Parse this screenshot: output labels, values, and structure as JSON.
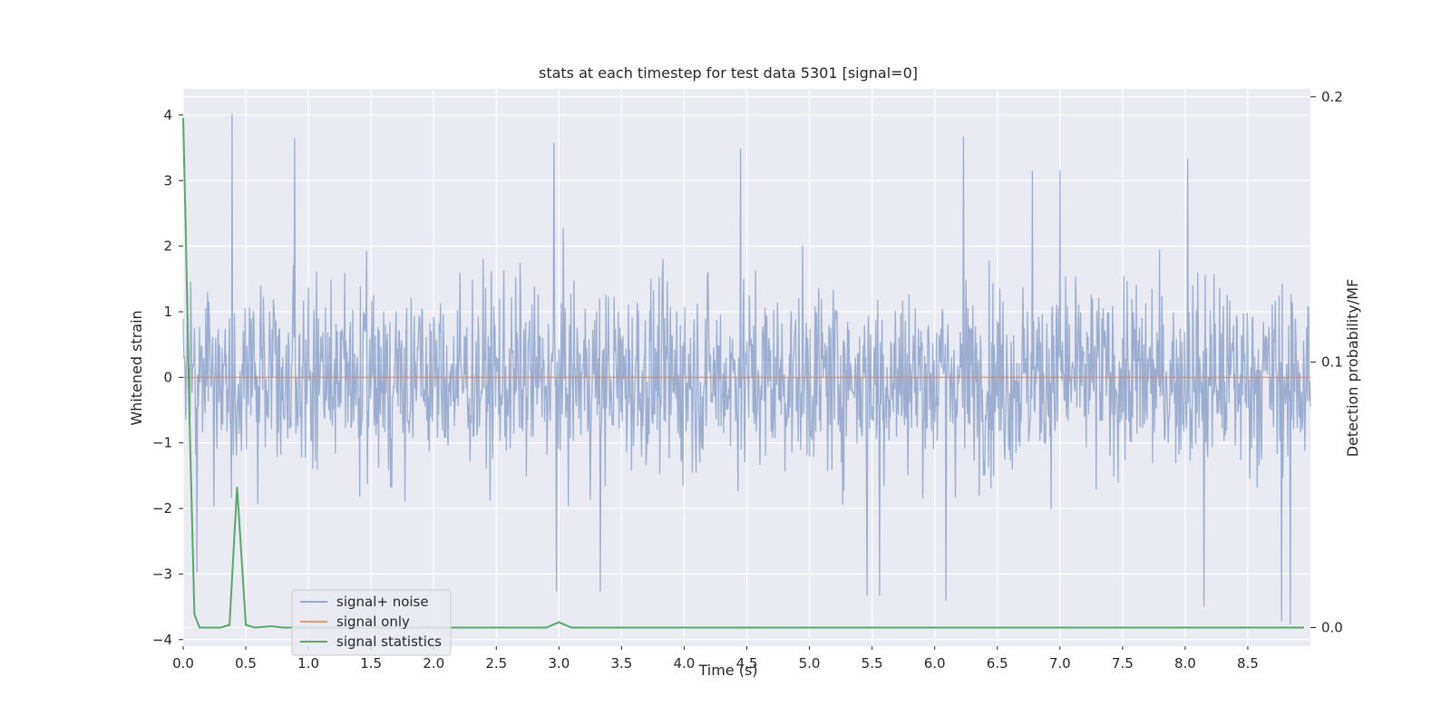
{
  "chart_data": {
    "type": "line",
    "title": "stats at each timestep for test data 5301 [signal=0]",
    "xlabel": "Time (s)",
    "ylabel": "Whitened strain",
    "y2label": "Detection probability/MF",
    "xlim": [
      0.0,
      9.0
    ],
    "ylim": [
      -4.1,
      4.4
    ],
    "y2lim": [
      -0.007,
      0.203
    ],
    "xticks": [
      0.0,
      0.5,
      1.0,
      1.5,
      2.0,
      2.5,
      3.0,
      3.5,
      4.0,
      4.5,
      5.0,
      5.5,
      6.0,
      6.5,
      7.0,
      7.5,
      8.0,
      8.5
    ],
    "xtick_labels": [
      "0.0",
      "0.5",
      "1.0",
      "1.5",
      "2.0",
      "2.5",
      "3.0",
      "3.5",
      "4.0",
      "4.5",
      "5.0",
      "5.5",
      "6.0",
      "6.5",
      "7.0",
      "7.5",
      "8.0",
      "8.5"
    ],
    "yticks": [
      -4,
      -3,
      -2,
      -1,
      0,
      1,
      2,
      3,
      4
    ],
    "ytick_labels": [
      "−4",
      "−3",
      "−2",
      "−1",
      "0",
      "1",
      "2",
      "3",
      "4"
    ],
    "y2ticks": [
      0.0,
      0.1,
      0.2
    ],
    "y2tick_labels": [
      "0.0",
      "0.1",
      "0.2"
    ],
    "grid": true,
    "legend": "lower-left",
    "colors": {
      "background": "#eaeaf2",
      "grid": "#ffffff",
      "noise": "#4c72b0",
      "signal": "#dd8452",
      "stats": "#55a868"
    },
    "series": [
      {
        "name": "signal+ noise",
        "axis": "left",
        "noise_envelope": {
          "t_start": 0.0,
          "t_end": 9.0,
          "typical_range": [
            -2.0,
            2.0
          ],
          "peaks": [
            [
              0.39,
              4.02
            ],
            [
              0.89,
              3.65
            ],
            [
              2.96,
              3.58
            ],
            [
              6.23,
              3.67
            ],
            [
              8.02,
              3.33
            ],
            [
              4.45,
              3.49
            ],
            [
              7.0,
              3.16
            ],
            [
              6.78,
              3.15
            ]
          ],
          "troughs": [
            [
              0.11,
              -2.97
            ],
            [
              2.98,
              -3.27
            ],
            [
              3.33,
              -3.27
            ],
            [
              6.09,
              -3.4
            ],
            [
              8.15,
              -3.5
            ],
            [
              8.77,
              -3.72
            ],
            [
              8.84,
              -3.77
            ],
            [
              5.46,
              -3.33
            ],
            [
              5.56,
              -3.33
            ]
          ]
        }
      },
      {
        "name": "signal only",
        "axis": "left",
        "x": [
          0.0,
          9.0
        ],
        "values": [
          0.0,
          0.0
        ]
      },
      {
        "name": "signal statistics",
        "axis": "right",
        "x": [
          0.0,
          0.02,
          0.05,
          0.09,
          0.13,
          0.2,
          0.3,
          0.37,
          0.43,
          0.5,
          0.57,
          0.7,
          0.8,
          1.0,
          2.0,
          2.9,
          3.0,
          3.1,
          4.0,
          5.0,
          6.0,
          7.0,
          8.0,
          8.95
        ],
        "values": [
          0.192,
          0.15,
          0.08,
          0.005,
          0.0,
          0.0,
          0.0,
          0.001,
          0.053,
          0.001,
          0.0,
          0.0005,
          0.0,
          0.0,
          0.0,
          0.0,
          0.002,
          0.0,
          0.0,
          0.0,
          0.0,
          0.0,
          0.0,
          0.0
        ]
      }
    ]
  }
}
